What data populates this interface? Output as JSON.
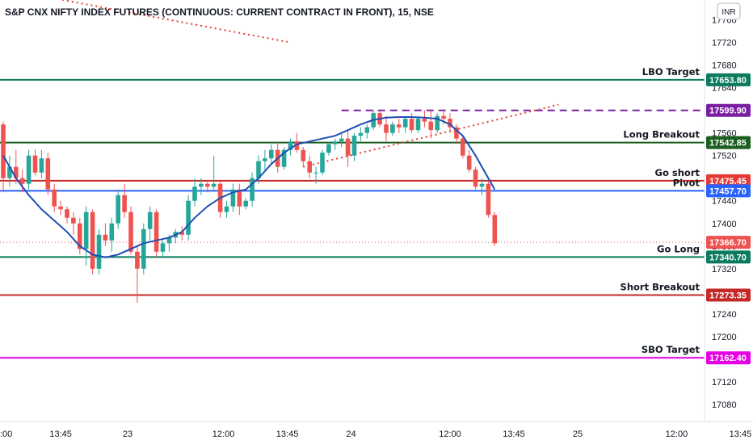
{
  "header": {
    "title": "S&P CNX NIFTY INDEX FUTURES (CONTINUOUS: CURRENT CONTRACT IN FRONT), 15, NSE",
    "currency_badge": "INR"
  },
  "colors": {
    "up": "#26a69a",
    "down": "#ef5350",
    "ma": "#1e4fb5",
    "green_level": "#0b7a5e",
    "red_level": "#c62828",
    "blue_level": "#2962ff",
    "magenta_level": "#e600e6",
    "purple_level": "#7b1fa2",
    "dotted": "#e53935",
    "dark_green": "#1b5e20"
  },
  "chart_data": {
    "type": "candlestick",
    "timeframe": "15",
    "ylim": [
      17050,
      17795
    ],
    "y_ticks": [
      17080,
      17120,
      17160,
      17200,
      17240,
      17280,
      17320,
      17360,
      17400,
      17440,
      17480,
      17520,
      17560,
      17600,
      17640,
      17680,
      17720,
      17760
    ],
    "x_labels": [
      {
        "i": -0.8,
        "text": ":00"
      },
      {
        "i": 9,
        "text": "13:45"
      },
      {
        "i": 19.5,
        "text": "23"
      },
      {
        "i": 34.5,
        "text": "12:00"
      },
      {
        "i": 44.5,
        "text": "13:45"
      },
      {
        "i": 54.5,
        "text": "24"
      },
      {
        "i": 70,
        "text": "12:00"
      },
      {
        "i": 80,
        "text": "13:45"
      },
      {
        "i": 90,
        "text": "25"
      },
      {
        "i": 105.5,
        "text": "12:00"
      },
      {
        "i": 115.5,
        "text": "13:45"
      }
    ],
    "candles": [
      [
        17575,
        17580,
        17455,
        17480
      ],
      [
        17480,
        17520,
        17465,
        17500
      ],
      [
        17500,
        17530,
        17470,
        17480
      ],
      [
        17480,
        17495,
        17455,
        17470
      ],
      [
        17470,
        17530,
        17460,
        17520
      ],
      [
        17520,
        17530,
        17485,
        17490
      ],
      [
        17490,
        17530,
        17480,
        17515
      ],
      [
        17515,
        17525,
        17450,
        17460
      ],
      [
        17460,
        17470,
        17420,
        17430
      ],
      [
        17430,
        17440,
        17415,
        17425
      ],
      [
        17425,
        17430,
        17400,
        17410
      ],
      [
        17410,
        17420,
        17380,
        17400
      ],
      [
        17400,
        17410,
        17345,
        17355
      ],
      [
        17355,
        17430,
        17325,
        17420
      ],
      [
        17420,
        17425,
        17310,
        17320
      ],
      [
        17320,
        17390,
        17310,
        17380
      ],
      [
        17380,
        17400,
        17360,
        17370
      ],
      [
        17370,
        17410,
        17350,
        17400
      ],
      [
        17400,
        17460,
        17390,
        17450
      ],
      [
        17450,
        17470,
        17410,
        17420
      ],
      [
        17420,
        17430,
        17345,
        17350
      ],
      [
        17350,
        17360,
        17260,
        17320
      ],
      [
        17320,
        17400,
        17310,
        17390
      ],
      [
        17390,
        17430,
        17370,
        17420
      ],
      [
        17420,
        17425,
        17340,
        17350
      ],
      [
        17350,
        17370,
        17340,
        17365
      ],
      [
        17365,
        17380,
        17350,
        17375
      ],
      [
        17375,
        17390,
        17365,
        17385
      ],
      [
        17385,
        17395,
        17370,
        17380
      ],
      [
        17380,
        17450,
        17370,
        17440
      ],
      [
        17440,
        17480,
        17430,
        17465
      ],
      [
        17465,
        17480,
        17450,
        17470
      ],
      [
        17470,
        17475,
        17455,
        17465
      ],
      [
        17465,
        17520,
        17460,
        17470
      ],
      [
        17470,
        17475,
        17410,
        17420
      ],
      [
        17420,
        17440,
        17410,
        17430
      ],
      [
        17430,
        17470,
        17420,
        17460
      ],
      [
        17460,
        17470,
        17415,
        17430
      ],
      [
        17430,
        17445,
        17425,
        17440
      ],
      [
        17440,
        17490,
        17430,
        17480
      ],
      [
        17480,
        17520,
        17470,
        17510
      ],
      [
        17510,
        17530,
        17495,
        17515
      ],
      [
        17515,
        17540,
        17505,
        17530
      ],
      [
        17530,
        17545,
        17490,
        17500
      ],
      [
        17500,
        17535,
        17495,
        17530
      ],
      [
        17530,
        17550,
        17520,
        17545
      ],
      [
        17545,
        17560,
        17525,
        17530
      ],
      [
        17530,
        17535,
        17500,
        17510
      ],
      [
        17510,
        17520,
        17480,
        17490
      ],
      [
        17490,
        17500,
        17470,
        17490
      ],
      [
        17490,
        17530,
        17485,
        17525
      ],
      [
        17525,
        17545,
        17520,
        17540
      ],
      [
        17540,
        17550,
        17530,
        17545
      ],
      [
        17545,
        17560,
        17535,
        17550
      ],
      [
        17550,
        17565,
        17500,
        17520
      ],
      [
        17520,
        17560,
        17510,
        17555
      ],
      [
        17555,
        17570,
        17545,
        17560
      ],
      [
        17560,
        17575,
        17550,
        17570
      ],
      [
        17570,
        17600,
        17565,
        17595
      ],
      [
        17595,
        17600,
        17570,
        17575
      ],
      [
        17575,
        17590,
        17545,
        17560
      ],
      [
        17560,
        17580,
        17555,
        17575
      ],
      [
        17575,
        17585,
        17560,
        17570
      ],
      [
        17570,
        17590,
        17560,
        17585
      ],
      [
        17585,
        17595,
        17560,
        17565
      ],
      [
        17565,
        17590,
        17560,
        17585
      ],
      [
        17585,
        17600,
        17570,
        17580
      ],
      [
        17580,
        17600,
        17550,
        17565
      ],
      [
        17565,
        17595,
        17560,
        17590
      ],
      [
        17590,
        17600,
        17575,
        17585
      ],
      [
        17585,
        17595,
        17560,
        17570
      ],
      [
        17570,
        17575,
        17540,
        17550
      ],
      [
        17550,
        17555,
        17515,
        17520
      ],
      [
        17520,
        17530,
        17490,
        17495
      ],
      [
        17495,
        17500,
        17460,
        17465
      ],
      [
        17465,
        17480,
        17450,
        17470
      ],
      [
        17470,
        17475,
        17410,
        17415
      ],
      [
        17415,
        17420,
        17360,
        17365
      ]
    ],
    "moving_average": {
      "points": [
        [
          0,
          17520
        ],
        [
          2,
          17480
        ],
        [
          4,
          17450
        ],
        [
          6,
          17425
        ],
        [
          8,
          17405
        ],
        [
          10,
          17385
        ],
        [
          12,
          17360
        ],
        [
          14,
          17345
        ],
        [
          16,
          17340
        ],
        [
          18,
          17345
        ],
        [
          20,
          17355
        ],
        [
          22,
          17365
        ],
        [
          24,
          17370
        ],
        [
          26,
          17375
        ],
        [
          28,
          17385
        ],
        [
          30,
          17410
        ],
        [
          32,
          17430
        ],
        [
          34,
          17445
        ],
        [
          36,
          17455
        ],
        [
          38,
          17460
        ],
        [
          40,
          17480
        ],
        [
          42,
          17505
        ],
        [
          44,
          17525
        ],
        [
          46,
          17540
        ],
        [
          48,
          17545
        ],
        [
          50,
          17550
        ],
        [
          52,
          17555
        ],
        [
          54,
          17565
        ],
        [
          56,
          17575
        ],
        [
          58,
          17583
        ],
        [
          60,
          17587
        ],
        [
          62,
          17588
        ],
        [
          64,
          17588
        ],
        [
          66,
          17587
        ],
        [
          68,
          17585
        ],
        [
          70,
          17575
        ],
        [
          72,
          17555
        ],
        [
          74,
          17520
        ],
        [
          76,
          17480
        ],
        [
          77,
          17460
        ]
      ]
    },
    "levels": [
      {
        "label": "LBO Target",
        "value": 17653.8,
        "tag": "17653.80",
        "color": "#0b7a5e",
        "dash": "",
        "tagColor": "#0b7a5e"
      },
      {
        "label": "",
        "value": 17599.9,
        "tag": "17599.90",
        "color": "#7b1fa2",
        "dash": "9,6",
        "tagColor": "#7b1fa2",
        "x_from": 53
      },
      {
        "label": "Long Breakout",
        "value": 17542.85,
        "tag": "17542.85",
        "color": "#1b5e20",
        "dash": "",
        "tagColor": "#1b5e20"
      },
      {
        "label": "Go short",
        "value": 17475.45,
        "tag": "17475.45",
        "color": "#c62828",
        "dash": "",
        "tagColor": "#e53935"
      },
      {
        "label": "Pivot",
        "value": 17457.7,
        "tag": "17457.70",
        "color": "#2962ff",
        "dash": "",
        "tagColor": "#2962ff"
      },
      {
        "label": "",
        "value": 17366.7,
        "tag": "17366.70",
        "color": "#ef5350",
        "dash": "1,3",
        "tagColor": "#ef5350"
      },
      {
        "label": "Go Long",
        "value": 17340.7,
        "tag": "17340.70",
        "color": "#0b7a5e",
        "dash": "",
        "tagColor": "#0b7a5e"
      },
      {
        "label": "Short Breakout",
        "value": 17273.35,
        "tag": "17273.35",
        "color": "#c62828",
        "dash": "",
        "tagColor": "#c62828"
      },
      {
        "label": "SBO Target",
        "value": 17162.4,
        "tag": "17162.40",
        "color": "#e600e6",
        "dash": "",
        "tagColor": "#e600e6"
      }
    ],
    "trendlines": [
      {
        "from": [
          7,
          17800
        ],
        "to": [
          45,
          17720
        ]
      },
      {
        "from": [
          47,
          17500
        ],
        "to": [
          87,
          17610
        ]
      }
    ]
  }
}
